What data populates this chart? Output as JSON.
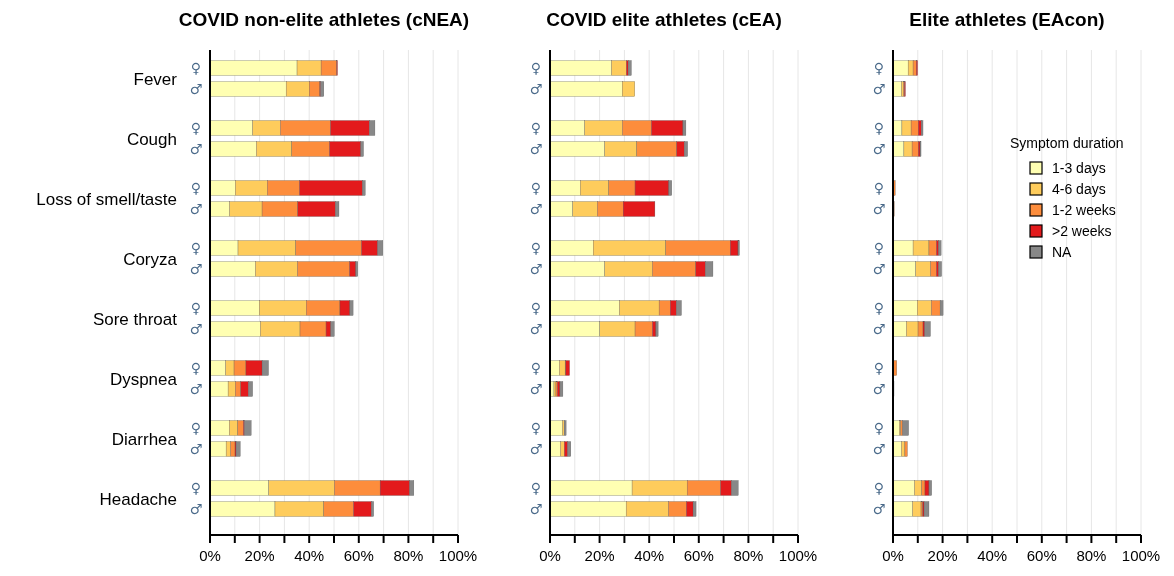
{
  "chart_data": [
    {
      "type": "bar",
      "orientation": "horizontal",
      "stacked": true,
      "title": "COVID non-elite athletes (cNEA)",
      "categories": [
        "♀",
        "♂",
        "♀",
        "♂",
        "♀",
        "♂",
        "♀",
        "♂",
        "♀",
        "♂",
        "♀",
        "♂",
        "♀",
        "♂",
        "♀",
        "♂"
      ],
      "annotations": [
        "Fever",
        "Cough",
        "Loss of smell/taste",
        "Coryza",
        "Sore throat",
        "Dyspnea",
        "Diarrhea",
        "Headache"
      ],
      "xlim": [
        0,
        100
      ],
      "xticks": [
        {
          "value": 0,
          "label": "0%"
        },
        {
          "value": 10,
          "label": null
        },
        {
          "value": 20,
          "label": "20%"
        },
        {
          "value": 30,
          "label": null
        },
        {
          "value": 40,
          "label": "40%"
        },
        {
          "value": 50,
          "label": null
        },
        {
          "value": 60,
          "label": "60%"
        },
        {
          "value": 70,
          "label": null
        },
        {
          "value": 80,
          "label": "80%"
        },
        {
          "value": 90,
          "label": null
        },
        {
          "value": 100,
          "label": "100%"
        }
      ],
      "grid": "x",
      "legend": false,
      "series": [
        {
          "color": "#ffffb2",
          "values": [
            35.1,
            30.7,
            17.2,
            18.7,
            10.2,
            7.9,
            11.3,
            18.3,
            19.9,
            20.3,
            6.3,
            7.3,
            7.8,
            6.5,
            23.7,
            26.2
          ]
        },
        {
          "color": "#fecc5c",
          "values": [
            9.7,
            9.3,
            11.2,
            14.3,
            12.9,
            13.1,
            23.3,
            17,
            18.9,
            16,
            3.4,
            2.9,
            3.4,
            1.8,
            26.5,
            19.7
          ]
        },
        {
          "color": "#fd8d3c",
          "values": [
            6.3,
            4.3,
            20.2,
            15.2,
            13,
            14.4,
            26.5,
            21,
            13.6,
            10.5,
            4.8,
            2.2,
            2.3,
            1.8,
            18.4,
            12
          ]
        },
        {
          "color": "#e31a1c",
          "values": [
            0.3,
            0.3,
            15.7,
            12.6,
            25.4,
            15.2,
            6.5,
            2.5,
            4,
            1.9,
            6.5,
            3.1,
            0.4,
            0.4,
            11.9,
            7.2
          ]
        },
        {
          "color": "#888888",
          "values": [
            0,
            1.3,
            2.2,
            1.1,
            1.1,
            1.4,
            2.1,
            0.8,
            1.3,
            1.4,
            2.6,
            1.7,
            2.7,
            1.7,
            1.7,
            0.9
          ]
        }
      ]
    },
    {
      "type": "bar",
      "orientation": "horizontal",
      "stacked": true,
      "title": "COVID elite athletes (cEA)",
      "categories": [
        "♀",
        "♂",
        "♀",
        "♂",
        "♀",
        "♂",
        "♀",
        "♂",
        "♀",
        "♂",
        "♀",
        "♂",
        "♀",
        "♂",
        "♀",
        "♂"
      ],
      "xlim": [
        0,
        100
      ],
      "xticks": [
        {
          "value": 0,
          "label": "0%"
        },
        {
          "value": 10,
          "label": null
        },
        {
          "value": 20,
          "label": "20%"
        },
        {
          "value": 30,
          "label": null
        },
        {
          "value": 40,
          "label": "40%"
        },
        {
          "value": 50,
          "label": null
        },
        {
          "value": 60,
          "label": "60%"
        },
        {
          "value": 70,
          "label": null
        },
        {
          "value": 80,
          "label": "80%"
        },
        {
          "value": 90,
          "label": null
        },
        {
          "value": 100,
          "label": "100%"
        }
      ],
      "grid": "x",
      "legend": false,
      "series": [
        {
          "color": "#ffffb2",
          "values": [
            24.8,
            29.1,
            14,
            22.1,
            12.2,
            9.2,
            17.4,
            22.1,
            28,
            20.1,
            3.8,
            1.6,
            5,
            4.2,
            33.1,
            30.7
          ]
        },
        {
          "color": "#fecc5c",
          "values": [
            6,
            5.1,
            15.2,
            12.9,
            11.5,
            9.9,
            29.3,
            19.2,
            16,
            14.2,
            2.3,
            0.8,
            0.7,
            1.6,
            22.2,
            17.1
          ]
        },
        {
          "color": "#fd8d3c",
          "values": [
            null,
            0,
            11.7,
            16.1,
            10.6,
            10.4,
            26,
            17.5,
            4.5,
            7,
            0.3,
            0.6,
            0,
            null,
            13.5,
            7.2
          ]
        },
        {
          "color": "#e31a1c",
          "values": [
            0.7,
            0,
            12.7,
            3.1,
            13.6,
            12.8,
            3.1,
            3.9,
            2.5,
            1.4,
            1.5,
            1,
            0,
            1.3,
            4.4,
            2.7
          ]
        },
        {
          "color": "#888888",
          "values": [
            1.3,
            0,
            1.2,
            1.3,
            1.2,
            0,
            0.6,
            3,
            2,
            0.9,
            0,
            1.2,
            0.8,
            1.3,
            2.7,
            1.2
          ]
        }
      ]
    },
    {
      "type": "bar",
      "orientation": "horizontal",
      "stacked": true,
      "title": "Elite athletes (EAcon)",
      "categories": [
        "♀",
        "♂",
        "♀",
        "♂",
        "♀",
        "♂",
        "♀",
        "♂",
        "♀",
        "♂",
        "♀",
        "♂",
        "♀",
        "♂",
        "♀",
        "♂"
      ],
      "xlim": [
        0,
        100
      ],
      "xticks": [
        {
          "value": 0,
          "label": "0%"
        },
        {
          "value": 10,
          "label": null
        },
        {
          "value": 20,
          "label": "20%"
        },
        {
          "value": 30,
          "label": null
        },
        {
          "value": 40,
          "label": "40%"
        },
        {
          "value": 50,
          "label": null
        },
        {
          "value": 60,
          "label": "60%"
        },
        {
          "value": 70,
          "label": null
        },
        {
          "value": 80,
          "label": "80%"
        },
        {
          "value": 90,
          "label": null
        },
        {
          "value": 100,
          "label": "100%"
        }
      ],
      "grid": "x",
      "legend": "right",
      "legend_title": "Symptom duration",
      "series": [
        {
          "name": "1-3 days",
          "color": "#ffffb2",
          "values": [
            6.1,
            3.4,
            3.6,
            4.4,
            0,
            0,
            8.1,
            9.2,
            9.8,
            5.4,
            0,
            0.4,
            2.6,
            3.4,
            8.7,
            7.9
          ]
        },
        {
          "name": "4-6 days",
          "color": "#fecc5c",
          "values": [
            2,
            0.8,
            3.7,
            3.3,
            0,
            0,
            6.4,
            6,
            5.7,
            4.7,
            0,
            0,
            0.5,
            1.4,
            2.9,
            3.4
          ]
        },
        {
          "name": "1-2 weeks",
          "color": "#fd8d3c",
          "values": [
            1.3,
            0.4,
            2.9,
            2.5,
            0.9,
            0.5,
            3,
            2.3,
            3.5,
            2,
            1.5,
            0,
            0.8,
            1,
            1.3,
            0.7
          ]
        },
        {
          "name": ">2 weeks",
          "color": "#e31a1c",
          "values": [
            0.5,
            0.4,
            1.2,
            0.7,
            0,
            0,
            0.9,
            0.9,
            0,
            0.7,
            0,
            0,
            0,
            0,
            1.6,
            0.5
          ]
        },
        {
          "name": "NA",
          "color": "#888888",
          "values": [
            0,
            0,
            0.7,
            0.4,
            0,
            0,
            1,
            1.2,
            1.2,
            2.3,
            0,
            0,
            2.4,
            0,
            1.1,
            2
          ]
        }
      ]
    }
  ]
}
